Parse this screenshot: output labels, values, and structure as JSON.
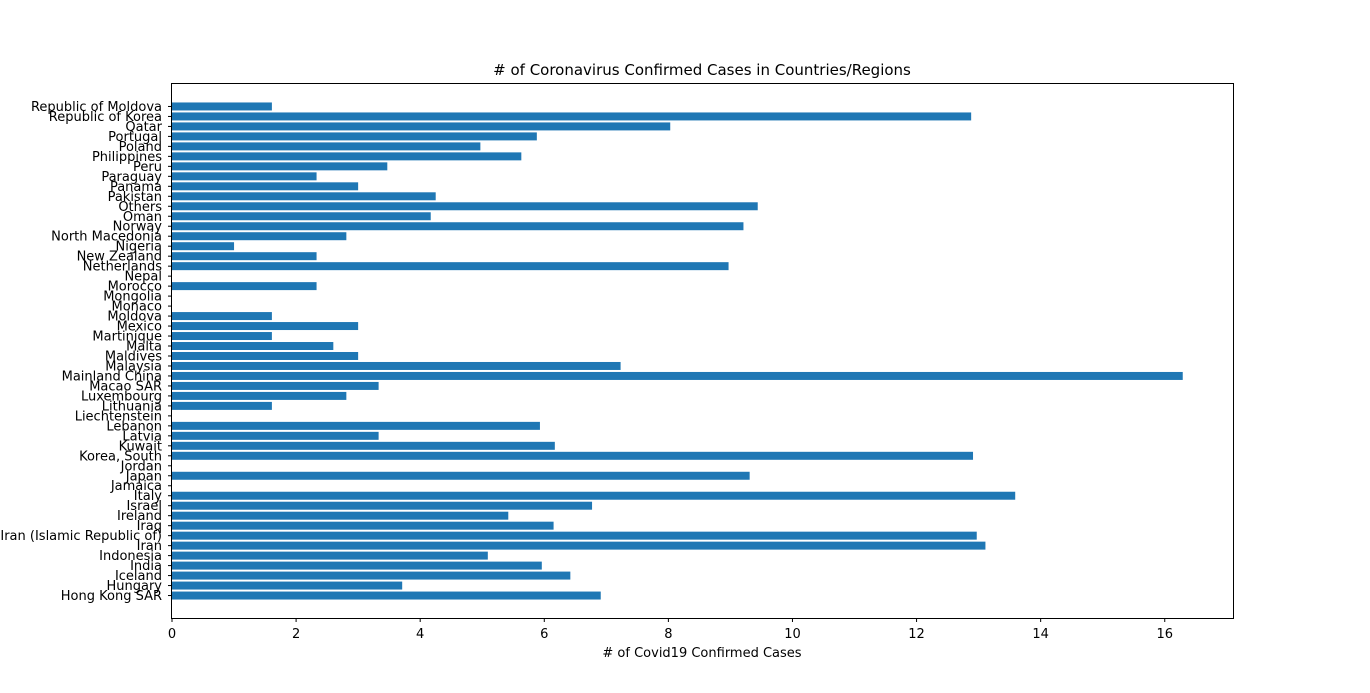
{
  "chart_data": {
    "type": "bar",
    "orientation": "horizontal",
    "title": "# of Coronavirus Confirmed Cases in Countries/Regions",
    "xlabel": "# of Covid19 Confirmed Cases",
    "ylabel": "",
    "xlim": [
      0,
      17.1
    ],
    "xticks": [
      0,
      2,
      4,
      6,
      8,
      10,
      12,
      14,
      16
    ],
    "grid": false,
    "bar_color": "#1f77b4",
    "categories": [
      "Hong Kong SAR",
      "Hungary",
      "Iceland",
      "India",
      "Indonesia",
      "Iran",
      "Iran (Islamic Republic of)",
      "Iraq",
      "Ireland",
      "Israel",
      "Italy",
      "Jamaica",
      "Japan",
      "Jordan",
      "Korea, South",
      "Kuwait",
      "Latvia",
      "Lebanon",
      "Liechtenstein",
      "Lithuania",
      "Luxembourg",
      "Macao SAR",
      "Mainland China",
      "Malaysia",
      "Maldives",
      "Malta",
      "Martinique",
      "Mexico",
      "Moldova",
      "Monaco",
      "Mongolia",
      "Morocco",
      "Nepal",
      "Netherlands",
      "New Zealand",
      "Nigeria",
      "North Macedonia",
      "Norway",
      "Oman",
      "Others",
      "Pakistan",
      "Panama",
      "Paraguay",
      "Peru",
      "Philippines",
      "Poland",
      "Portugal",
      "Qatar",
      "Republic of Korea",
      "Republic of Moldova"
    ],
    "values": [
      6.91,
      3.71,
      6.42,
      5.96,
      5.09,
      13.11,
      12.97,
      6.15,
      5.42,
      6.77,
      13.59,
      0,
      9.31,
      0,
      12.91,
      6.17,
      3.33,
      5.93,
      0,
      1.61,
      2.81,
      3.33,
      16.29,
      7.23,
      3.0,
      2.6,
      1.61,
      3.0,
      1.61,
      0,
      0,
      2.33,
      0,
      8.97,
      2.33,
      1.0,
      2.81,
      9.21,
      4.17,
      9.44,
      4.25,
      3.0,
      2.33,
      3.47,
      5.63,
      4.97,
      5.88,
      8.03,
      12.88,
      1.61
    ]
  }
}
